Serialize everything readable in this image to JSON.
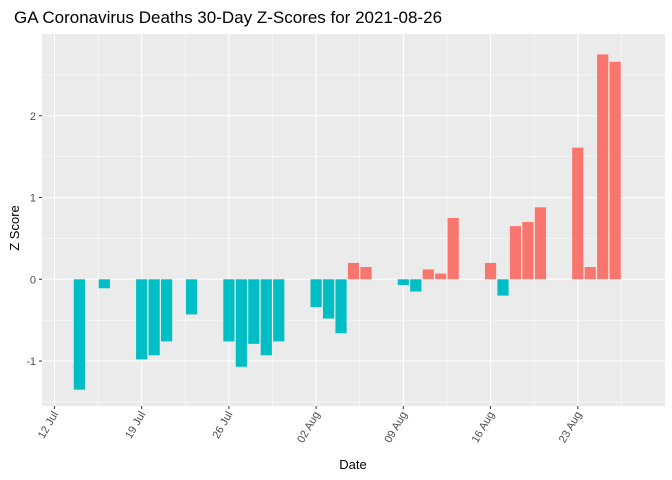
{
  "chart_data": {
    "type": "bar",
    "title": "GA Coronavirus Deaths 30-Day Z-Scores for 2021-08-26",
    "xlabel": "Date",
    "ylabel": "Z Score",
    "ylim": [
      -1.55,
      3.0
    ],
    "xlim": [
      "2021-07-11",
      "2021-08-30"
    ],
    "grid": true,
    "legend": "none",
    "colors": {
      "positive": "#F8766D",
      "negative": "#00BFC4",
      "panel": "#EBEBEB",
      "grid": "#FFFFFF"
    },
    "y_ticks": [
      -1,
      0,
      1,
      2
    ],
    "x_ticks": [
      {
        "date": "2021-07-12",
        "label": "12 Jul"
      },
      {
        "date": "2021-07-19",
        "label": "19 Jul"
      },
      {
        "date": "2021-07-26",
        "label": "26 Jul"
      },
      {
        "date": "2021-08-02",
        "label": "02 Aug"
      },
      {
        "date": "2021-08-09",
        "label": "09 Aug"
      },
      {
        "date": "2021-08-16",
        "label": "16 Aug"
      },
      {
        "date": "2021-08-23",
        "label": "23 Aug"
      }
    ],
    "dates": [
      "2021-07-14",
      "2021-07-16",
      "2021-07-19",
      "2021-07-20",
      "2021-07-21",
      "2021-07-23",
      "2021-07-26",
      "2021-07-27",
      "2021-07-28",
      "2021-07-29",
      "2021-07-30",
      "2021-08-02",
      "2021-08-03",
      "2021-08-04",
      "2021-08-05",
      "2021-08-06",
      "2021-08-09",
      "2021-08-10",
      "2021-08-11",
      "2021-08-12",
      "2021-08-13",
      "2021-08-16",
      "2021-08-17",
      "2021-08-18",
      "2021-08-19",
      "2021-08-20",
      "2021-08-23",
      "2021-08-24",
      "2021-08-25",
      "2021-08-26"
    ],
    "values": [
      -1.35,
      -0.11,
      -0.98,
      -0.93,
      -0.76,
      -0.43,
      -0.76,
      -1.07,
      -0.79,
      -0.93,
      -0.76,
      -0.34,
      -0.48,
      -0.66,
      0.2,
      0.15,
      -0.07,
      -0.15,
      0.12,
      0.07,
      0.75,
      0.2,
      -0.2,
      0.65,
      0.7,
      0.88,
      1.61,
      0.15,
      2.75,
      2.66
    ]
  }
}
